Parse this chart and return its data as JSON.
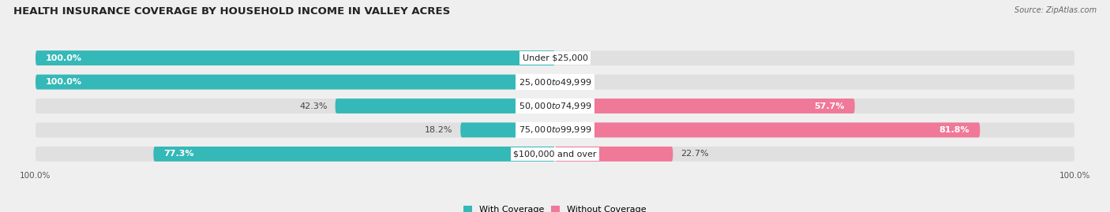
{
  "title": "HEALTH INSURANCE COVERAGE BY HOUSEHOLD INCOME IN VALLEY ACRES",
  "source": "Source: ZipAtlas.com",
  "categories": [
    "Under $25,000",
    "$25,000 to $49,999",
    "$50,000 to $74,999",
    "$75,000 to $99,999",
    "$100,000 and over"
  ],
  "with_coverage": [
    100.0,
    100.0,
    42.3,
    18.2,
    77.3
  ],
  "without_coverage": [
    0.0,
    0.0,
    57.7,
    81.8,
    22.7
  ],
  "color_coverage": "#35b8b8",
  "color_no_coverage": "#f07898",
  "bg_color": "#efefef",
  "bar_bg_color": "#e0e0e0",
  "title_fontsize": 9.5,
  "label_fontsize": 8.0,
  "tick_fontsize": 7.5,
  "bar_height": 0.62,
  "rounding": 0.28
}
